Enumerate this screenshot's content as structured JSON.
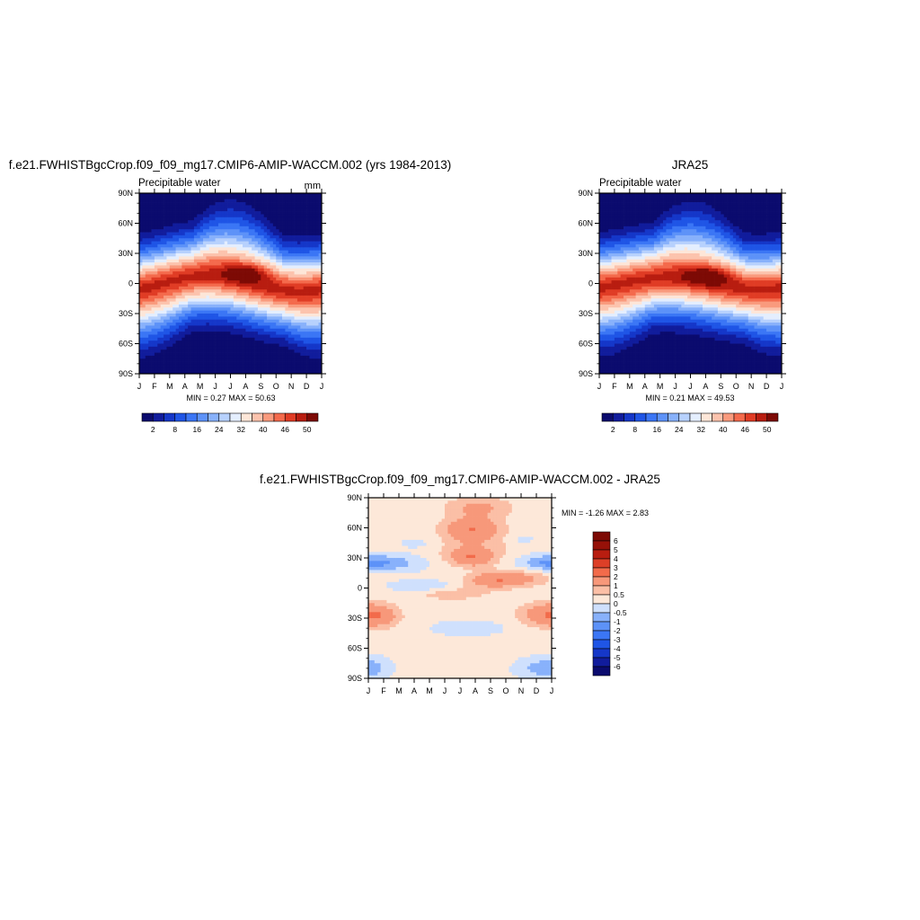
{
  "figure": {
    "panels": [
      {
        "title": "f.e21.FWHISTBgcCrop.f09_f09_mg17.CMIP6-AMIP-WACCM.002 (yrs 1984-2013)",
        "left_label": "Precipitable water",
        "right_label": "mm",
        "stats": "MIN =   0.27 MAX =  50.63"
      },
      {
        "title": "JRA25",
        "left_label": "Precipitable water",
        "right_label": "",
        "stats": "MIN =   0.21 MAX =  49.53"
      },
      {
        "title": "f.e21.FWHISTBgcCrop.f09_f09_mg17.CMIP6-AMIP-WACCM.002 - JRA25",
        "left_label": "",
        "right_label": "",
        "stats": "MIN =  -1.26 MAX =   2.83"
      }
    ]
  },
  "chart_data": [
    {
      "type": "heatmap",
      "title": "f.e21.FWHISTBgcCrop.f09_f09_mg17.CMIP6-AMIP-WACCM.002 (yrs 1984-2013)",
      "variable": "Precipitable water",
      "units": "mm",
      "x_ticklabels": [
        "J",
        "F",
        "M",
        "A",
        "M",
        "J",
        "J",
        "A",
        "S",
        "O",
        "N",
        "D",
        "J"
      ],
      "y_ticklabels": [
        "90N",
        "60N",
        "30N",
        "0",
        "30S",
        "60S",
        "90S"
      ],
      "y_values": [
        90,
        60,
        30,
        0,
        -30,
        -60,
        -90
      ],
      "min": 0.27,
      "max": 50.63,
      "colorbar": {
        "levels": [
          2,
          5,
          8,
          12,
          16,
          20,
          24,
          28,
          32,
          36,
          40,
          43,
          46,
          48,
          50
        ],
        "tick_labels": [
          "2",
          "8",
          "16",
          "24",
          "32",
          "40",
          "46",
          "50"
        ],
        "colors": [
          "#0b0b6e",
          "#111c9c",
          "#1537c9",
          "#1f55e6",
          "#3b76f5",
          "#5d92f8",
          "#88b1fb",
          "#b7d1fd",
          "#e4eefe",
          "#fde6d8",
          "#fcc3ad",
          "#f99a7d",
          "#f46a4c",
          "#e03c25",
          "#b81d10",
          "#7d0a05"
        ]
      },
      "pattern": {
        "peak_lat": 8,
        "peak_month_shift": 0.6
      }
    },
    {
      "type": "heatmap",
      "title": "JRA25",
      "variable": "Precipitable water",
      "x_ticklabels": [
        "J",
        "F",
        "M",
        "A",
        "M",
        "J",
        "J",
        "A",
        "S",
        "O",
        "N",
        "D",
        "J"
      ],
      "y_ticklabels": [
        "90N",
        "60N",
        "30N",
        "0",
        "30S",
        "60S",
        "90S"
      ],
      "y_values": [
        90,
        60,
        30,
        0,
        -30,
        -60,
        -90
      ],
      "min": 0.21,
      "max": 49.53,
      "colorbar": {
        "levels": [
          2,
          5,
          8,
          12,
          16,
          20,
          24,
          28,
          32,
          36,
          40,
          43,
          46,
          48,
          50
        ],
        "tick_labels": [
          "2",
          "8",
          "16",
          "24",
          "32",
          "40",
          "46",
          "50"
        ],
        "colors": [
          "#0b0b6e",
          "#111c9c",
          "#1537c9",
          "#1f55e6",
          "#3b76f5",
          "#5d92f8",
          "#88b1fb",
          "#b7d1fd",
          "#e4eefe",
          "#fde6d8",
          "#fcc3ad",
          "#f99a7d",
          "#f46a4c",
          "#e03c25",
          "#b81d10",
          "#7d0a05"
        ]
      },
      "pattern": {
        "peak_lat": 6,
        "peak_month_shift": 0.6
      }
    },
    {
      "type": "heatmap",
      "title": "f.e21.FWHISTBgcCrop.f09_f09_mg17.CMIP6-AMIP-WACCM.002 - JRA25",
      "x_ticklabels": [
        "J",
        "F",
        "M",
        "A",
        "M",
        "J",
        "J",
        "A",
        "S",
        "O",
        "N",
        "D",
        "J"
      ],
      "y_ticklabels": [
        "90N",
        "60N",
        "30N",
        "0",
        "30S",
        "60S",
        "90S"
      ],
      "y_values": [
        90,
        60,
        30,
        0,
        -30,
        -60,
        -90
      ],
      "min": -1.26,
      "max": 2.83,
      "colorbar": {
        "levels": [
          -6,
          -5,
          -4,
          -3,
          -2,
          -1,
          -0.5,
          0,
          0.5,
          1,
          2,
          3,
          4,
          5,
          6
        ],
        "tick_labels": [
          "6",
          "5",
          "4",
          "3",
          "2",
          "1",
          "0.5",
          "0",
          "-0.5",
          "-1",
          "-2",
          "-3",
          "-4",
          "-5",
          "-6"
        ],
        "colors": [
          "#0b0b6e",
          "#111c9c",
          "#1537c9",
          "#1f55e6",
          "#3b76f5",
          "#5d92f8",
          "#88b1fb",
          "#cfe0fd",
          "#fde8d9",
          "#fbbfa6",
          "#f7987a",
          "#f26b4b",
          "#dd3f27",
          "#b81d10",
          "#961108",
          "#7d0a05"
        ]
      },
      "anomalies": [
        {
          "month": 6.8,
          "lat": 60,
          "amp": 1.6,
          "sm": 1.2,
          "sl": 7
        },
        {
          "month": 7.2,
          "lat": 80,
          "amp": 1.0,
          "sm": 1.5,
          "sl": 8
        },
        {
          "month": 6.8,
          "lat": 30,
          "amp": 1.7,
          "sm": 1.0,
          "sl": 6
        },
        {
          "month": 8.2,
          "lat": 8,
          "amp": 1.4,
          "sm": 1.2,
          "sl": 5
        },
        {
          "month": 10.0,
          "lat": 10,
          "amp": 0.9,
          "sm": 1.5,
          "sl": 6
        },
        {
          "month": 0.6,
          "lat": -28,
          "amp": 1.2,
          "sm": 1.0,
          "sl": 8
        },
        {
          "month": 11.5,
          "lat": -26,
          "amp": 1.2,
          "sm": 1.2,
          "sl": 8
        },
        {
          "month": 6.5,
          "lat": 45,
          "amp": 0.7,
          "sm": 2.5,
          "sl": 10
        },
        {
          "month": 5.5,
          "lat": -5,
          "amp": 0.6,
          "sm": 2.0,
          "sl": 6
        },
        {
          "month": 1.5,
          "lat": 25,
          "amp": -0.9,
          "sm": 1.5,
          "sl": 6
        },
        {
          "month": 11.5,
          "lat": 25,
          "amp": -0.9,
          "sm": 1.2,
          "sl": 6
        },
        {
          "month": 3.5,
          "lat": 2,
          "amp": -0.8,
          "sm": 1.5,
          "sl": 4
        },
        {
          "month": 6.5,
          "lat": -40,
          "amp": -0.6,
          "sm": 1.5,
          "sl": 5
        },
        {
          "month": 3.5,
          "lat": 45,
          "amp": -0.55,
          "sm": 1.2,
          "sl": 6
        },
        {
          "month": 0.3,
          "lat": -80,
          "amp": -0.7,
          "sm": 0.8,
          "sl": 8
        },
        {
          "month": 11.0,
          "lat": -80,
          "amp": -0.7,
          "sm": 1.0,
          "sl": 7
        },
        {
          "month": 10.0,
          "lat": 48,
          "amp": -0.5,
          "sm": 0.8,
          "sl": 4
        }
      ]
    }
  ]
}
